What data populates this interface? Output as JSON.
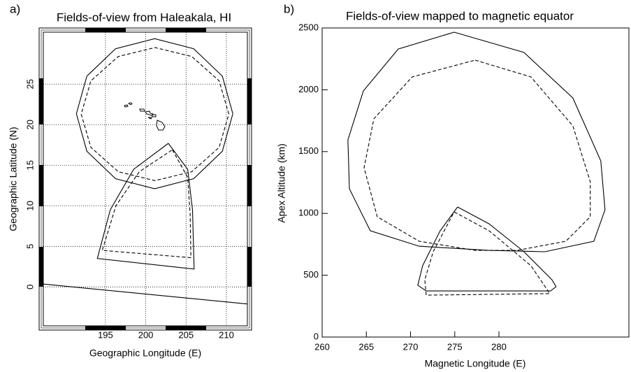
{
  "chart_data": [
    {
      "type": "line",
      "panel": "a)",
      "title": "Fields-of-view from Haleakala, HI",
      "xlabel": "Geographic Longitude (E)",
      "ylabel": "Geographic Latitude (N)",
      "xlim": [
        187.3,
        212.6
      ],
      "ylim": [
        -4.8,
        31.4
      ],
      "xticks": [
        195,
        200,
        205,
        210
      ],
      "yticks": [
        0,
        5,
        10,
        15,
        20,
        25
      ],
      "grid": true,
      "series": [
        {
          "color": "#000000",
          "dash": false,
          "x": [
            210.8,
            209.5,
            205.95,
            201.1,
            196.25,
            192.7,
            191.4,
            192.7,
            196.25,
            201.1,
            205.95,
            209.5,
            210.8
          ],
          "values": [
            21.35,
            25.98,
            29.36,
            30.6,
            29.36,
            25.98,
            21.35,
            16.72,
            13.34,
            12.1,
            13.34,
            16.72,
            21.35
          ]
        },
        {
          "color": "#000000",
          "dash": true,
          "x": [
            210.3,
            209.1,
            205.7,
            201.15,
            196.6,
            193.2,
            192.0,
            193.2,
            196.6,
            201.15,
            205.7,
            209.1,
            210.3
          ],
          "values": [
            21.3,
            25.4,
            28.4,
            29.5,
            28.4,
            25.4,
            21.3,
            17.2,
            14.2,
            13.1,
            14.2,
            17.2,
            21.3
          ]
        },
        {
          "color": "#000000",
          "dash": false,
          "x": [
            202.8,
            205.2,
            205.8,
            206.0,
            194.0,
            195.6,
            198.5,
            202.8
          ],
          "values": [
            17.7,
            14.5,
            9.5,
            2.2,
            3.5,
            9.5,
            14.5,
            17.7
          ]
        },
        {
          "color": "#000000",
          "dash": true,
          "x": [
            203.3,
            205.2,
            205.5,
            205.6,
            194.6,
            196.3,
            199.2,
            203.3
          ],
          "values": [
            16.9,
            13.5,
            9.0,
            3.6,
            4.5,
            10.0,
            14.2,
            16.9
          ]
        },
        {
          "color": "#000000",
          "dash": false,
          "x": [
            187.3,
            212.6
          ],
          "values": [
            0.35,
            -2.1
          ]
        }
      ]
    },
    {
      "type": "line",
      "panel": "b)",
      "title": "Fields-of-view mapped to magnetic equator",
      "xlabel": "Magnetic Longitude (E)",
      "ylabel": "Apex Altitude (km)",
      "xlim": [
        260,
        294.7
      ],
      "ylim": [
        0,
        2500
      ],
      "xticks": [
        260,
        265,
        270,
        275,
        280
      ],
      "yticks": [
        0,
        500,
        1000,
        1500,
        2000,
        2500
      ],
      "grid": false,
      "series": [
        {
          "color": "#000000",
          "dash": false,
          "x": [
            274.93,
            282.83,
            288.36,
            291.52,
            292.0,
            290.73,
            285.2,
            278.88,
            270.98,
            265.45,
            263.08,
            262.92,
            264.66,
            268.61,
            274.93
          ],
          "values": [
            2466,
            2302,
            1934,
            1425,
            1029,
            775,
            690,
            701,
            735,
            860,
            1199,
            1595,
            1991,
            2330,
            2466
          ]
        },
        {
          "color": "#000000",
          "dash": true,
          "x": [
            277.3,
            283.62,
            288.36,
            290.33,
            290.33,
            287.57,
            282.04,
            277.3,
            270.98,
            266.24,
            264.74,
            265.85,
            270.19,
            277.3
          ],
          "values": [
            2240,
            2104,
            1708,
            1256,
            973,
            775,
            701,
            701,
            775,
            973,
            1369,
            1765,
            2104,
            2240
          ]
        },
        {
          "color": "#000000",
          "dash": false,
          "x": [
            275.32,
            278.88,
            282.83,
            285.99,
            286.46,
            285.83,
            271.77,
            270.82,
            271.37,
            273.35,
            275.32
          ],
          "values": [
            1052,
            916,
            690,
            464,
            407,
            373,
            373,
            419,
            577,
            860,
            1052
          ]
        },
        {
          "color": "#000000",
          "dash": true,
          "x": [
            274.93,
            278.88,
            283.62,
            285.75,
            271.77,
            271.61,
            272.56,
            274.93
          ],
          "values": [
            1012,
            860,
            577,
            351,
            339,
            464,
            690,
            1012
          ]
        }
      ]
    }
  ]
}
